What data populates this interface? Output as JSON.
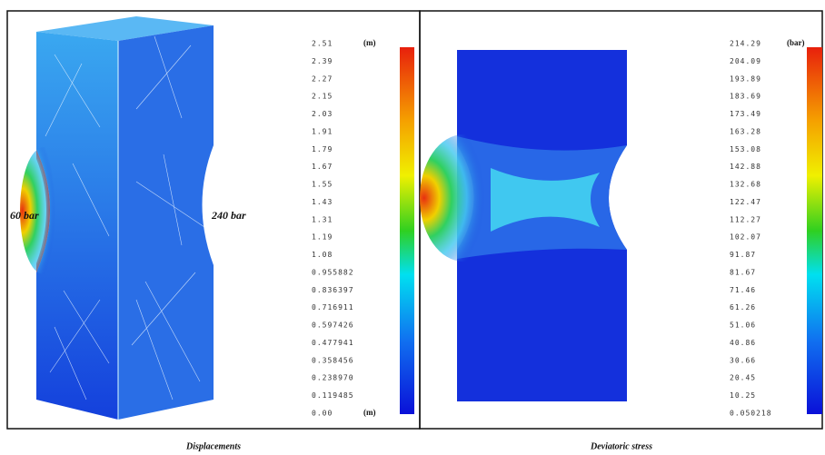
{
  "panels": [
    {
      "caption": "Displacements",
      "unit": "(m)",
      "annotations": [
        "60 bar",
        "240 bar"
      ],
      "levels": [
        "2.51",
        "2.39",
        "2.27",
        "2.15",
        "2.03",
        "1.91",
        "1.79",
        "1.67",
        "1.55",
        "1.43",
        "1.31",
        "1.19",
        "1.08",
        "0.955882",
        "0.836397",
        "0.716911",
        "0.597426",
        "0.477941",
        "0.358456",
        "0.238970",
        "0.119485",
        "0.00"
      ]
    },
    {
      "caption": "Deviatoric stress",
      "unit": "(bar)",
      "levels": [
        "214.29",
        "204.09",
        "193.89",
        "183.69",
        "173.49",
        "163.28",
        "153.08",
        "142.88",
        "132.68",
        "122.47",
        "112.27",
        "102.07",
        "91.87",
        "81.67",
        "71.46",
        "61.26",
        "51.06",
        "40.86",
        "30.66",
        "20.45",
        "10.25",
        "0.050218"
      ]
    }
  ]
}
